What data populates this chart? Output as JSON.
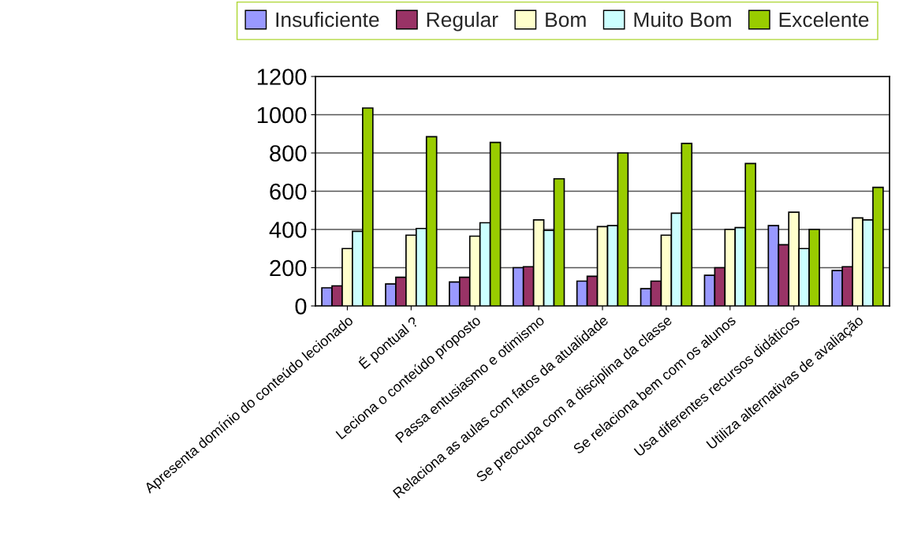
{
  "chart_data": {
    "type": "bar",
    "categories": [
      "Apresenta domínio do conteúdo lecionado",
      "É pontual ?",
      "Leciona o conteúdo proposto",
      "Passa entusiasmo e otimismo",
      "Relaciona as aulas com fatos da atualidade",
      "Se preocupa com a disciplina da classe",
      "Se relaciona bem com os alunos",
      "Usa diferentes recursos didáticos",
      "Utiliza alternativas de avaliação"
    ],
    "series": [
      {
        "name": "Insuficiente",
        "color": "#9999ff",
        "values": [
          95,
          115,
          125,
          200,
          130,
          90,
          160,
          420,
          185
        ]
      },
      {
        "name": "Regular",
        "color": "#993366",
        "values": [
          105,
          150,
          150,
          205,
          155,
          130,
          200,
          320,
          205
        ]
      },
      {
        "name": "Bom",
        "color": "#ffffcc",
        "values": [
          300,
          370,
          365,
          450,
          415,
          370,
          400,
          490,
          460
        ]
      },
      {
        "name": "Muito Bom",
        "color": "#ccffff",
        "values": [
          390,
          405,
          435,
          395,
          420,
          485,
          410,
          300,
          450
        ]
      },
      {
        "name": "Excelente",
        "color": "#99cc00",
        "values": [
          1035,
          885,
          855,
          665,
          800,
          850,
          745,
          400,
          620
        ]
      }
    ],
    "ylim": [
      0,
      1200
    ],
    "yticks": [
      0,
      200,
      400,
      600,
      800,
      1000,
      1200
    ],
    "grid": "y",
    "legend": "top"
  }
}
